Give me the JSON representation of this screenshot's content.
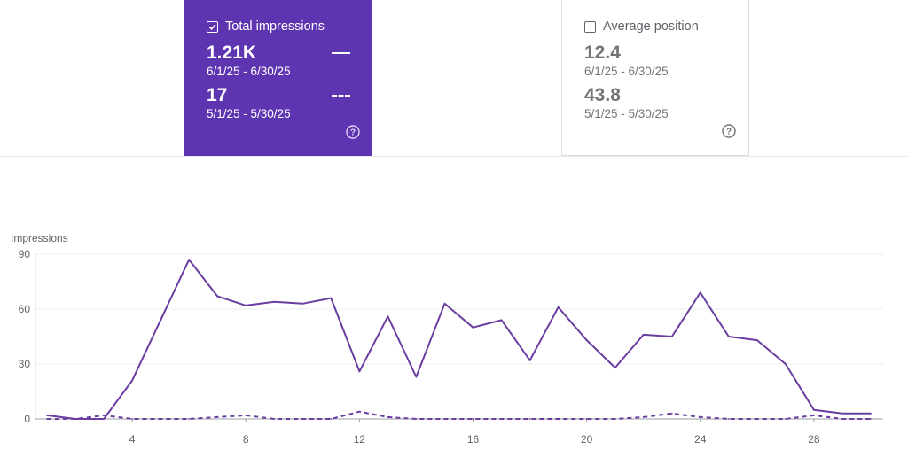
{
  "cards": [
    {
      "label": "Total impressions",
      "checked": true,
      "primary_value": "1.21K",
      "primary_range": "6/1/25 - 6/30/25",
      "compare_value": "17",
      "compare_range": "5/1/25 - 5/30/25",
      "help_icon": "help-circle-icon"
    },
    {
      "label": "Average position",
      "checked": false,
      "primary_value": "12.4",
      "primary_range": "6/1/25 - 6/30/25",
      "compare_value": "43.8",
      "compare_range": "5/1/25 - 5/30/25",
      "help_icon": "help-circle-icon"
    }
  ],
  "colors": {
    "accent": "#5e35b1",
    "line": "#6a3ea1",
    "text_secondary": "#757575"
  },
  "chart_data": {
    "type": "line",
    "ylabel": "Impressions",
    "xlabel": "",
    "ylim": [
      0,
      90
    ],
    "xlim": [
      1,
      30
    ],
    "yticks": [
      0,
      30,
      60,
      90
    ],
    "xticks": [
      4,
      8,
      12,
      16,
      20,
      24,
      28
    ],
    "grid": true,
    "x": [
      1,
      2,
      3,
      4,
      5,
      6,
      7,
      8,
      9,
      10,
      11,
      12,
      13,
      14,
      15,
      16,
      17,
      18,
      19,
      20,
      21,
      22,
      23,
      24,
      25,
      26,
      27,
      28,
      29,
      30
    ],
    "series": [
      {
        "style": "solid",
        "values": [
          2,
          0,
          0,
          21,
          54,
          87,
          67,
          62,
          64,
          63,
          66,
          26,
          56,
          23,
          63,
          50,
          54,
          32,
          61,
          43,
          28,
          46,
          45,
          69,
          45,
          43,
          30,
          5,
          3,
          3
        ]
      },
      {
        "style": "dashed",
        "values": [
          0,
          0,
          2,
          0,
          0,
          0,
          1,
          2,
          0,
          0,
          0,
          4,
          1,
          0,
          0,
          0,
          0,
          0,
          0,
          0,
          0,
          1,
          3,
          1,
          0,
          0,
          0,
          2,
          0,
          0
        ]
      }
    ]
  }
}
